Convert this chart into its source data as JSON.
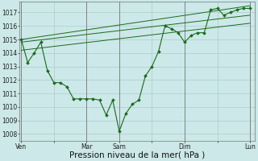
{
  "bg_color": "#cce8e8",
  "grid_color": "#aacccc",
  "line_color": "#1a6b1a",
  "xlabel": "Pression niveau de la mer( hPa )",
  "xlabel_fontsize": 7.5,
  "ylim": [
    1007.5,
    1017.8
  ],
  "yticks": [
    1008,
    1009,
    1010,
    1011,
    1012,
    1013,
    1014,
    1015,
    1016,
    1017
  ],
  "ytick_fontsize": 5.5,
  "xtick_labels": [
    "Ven",
    "",
    "Mar",
    "Sam",
    "",
    "Dim",
    "",
    "Lun"
  ],
  "xtick_positions": [
    0,
    1,
    2,
    3,
    4,
    5,
    6,
    7
  ],
  "xtick_vlines": [
    0,
    2,
    3,
    5,
    7
  ],
  "series1": {
    "x": [
      0.0,
      0.2,
      0.4,
      0.6,
      0.8,
      1.0,
      1.2,
      1.4,
      1.6,
      1.8,
      2.0,
      2.2,
      2.4,
      2.6,
      2.8,
      3.0,
      3.2,
      3.4,
      3.6,
      3.8,
      4.0,
      4.2,
      4.4,
      4.6,
      4.8,
      5.0,
      5.2,
      5.4,
      5.6,
      5.8,
      6.0,
      6.2,
      6.4,
      6.6,
      6.8,
      7.0
    ],
    "y": [
      1015.0,
      1013.3,
      1014.0,
      1014.8,
      1012.7,
      1011.8,
      1011.8,
      1011.5,
      1010.6,
      1010.6,
      1010.6,
      1010.6,
      1010.5,
      1009.4,
      1010.5,
      1008.2,
      1009.5,
      1010.2,
      1010.5,
      1012.3,
      1013.0,
      1014.1,
      1016.0,
      1015.8,
      1015.5,
      1014.8,
      1015.3,
      1015.5,
      1015.5,
      1017.2,
      1017.3,
      1016.8,
      1017.0,
      1017.2,
      1017.3,
      1017.3
    ]
  },
  "series2": {
    "x": [
      0.0,
      7.0
    ],
    "y": [
      1015.0,
      1017.5
    ]
  },
  "series3": {
    "x": [
      0.0,
      7.0
    ],
    "y": [
      1014.8,
      1016.8
    ]
  },
  "series4": {
    "x": [
      0.0,
      7.0
    ],
    "y": [
      1014.2,
      1016.2
    ]
  }
}
